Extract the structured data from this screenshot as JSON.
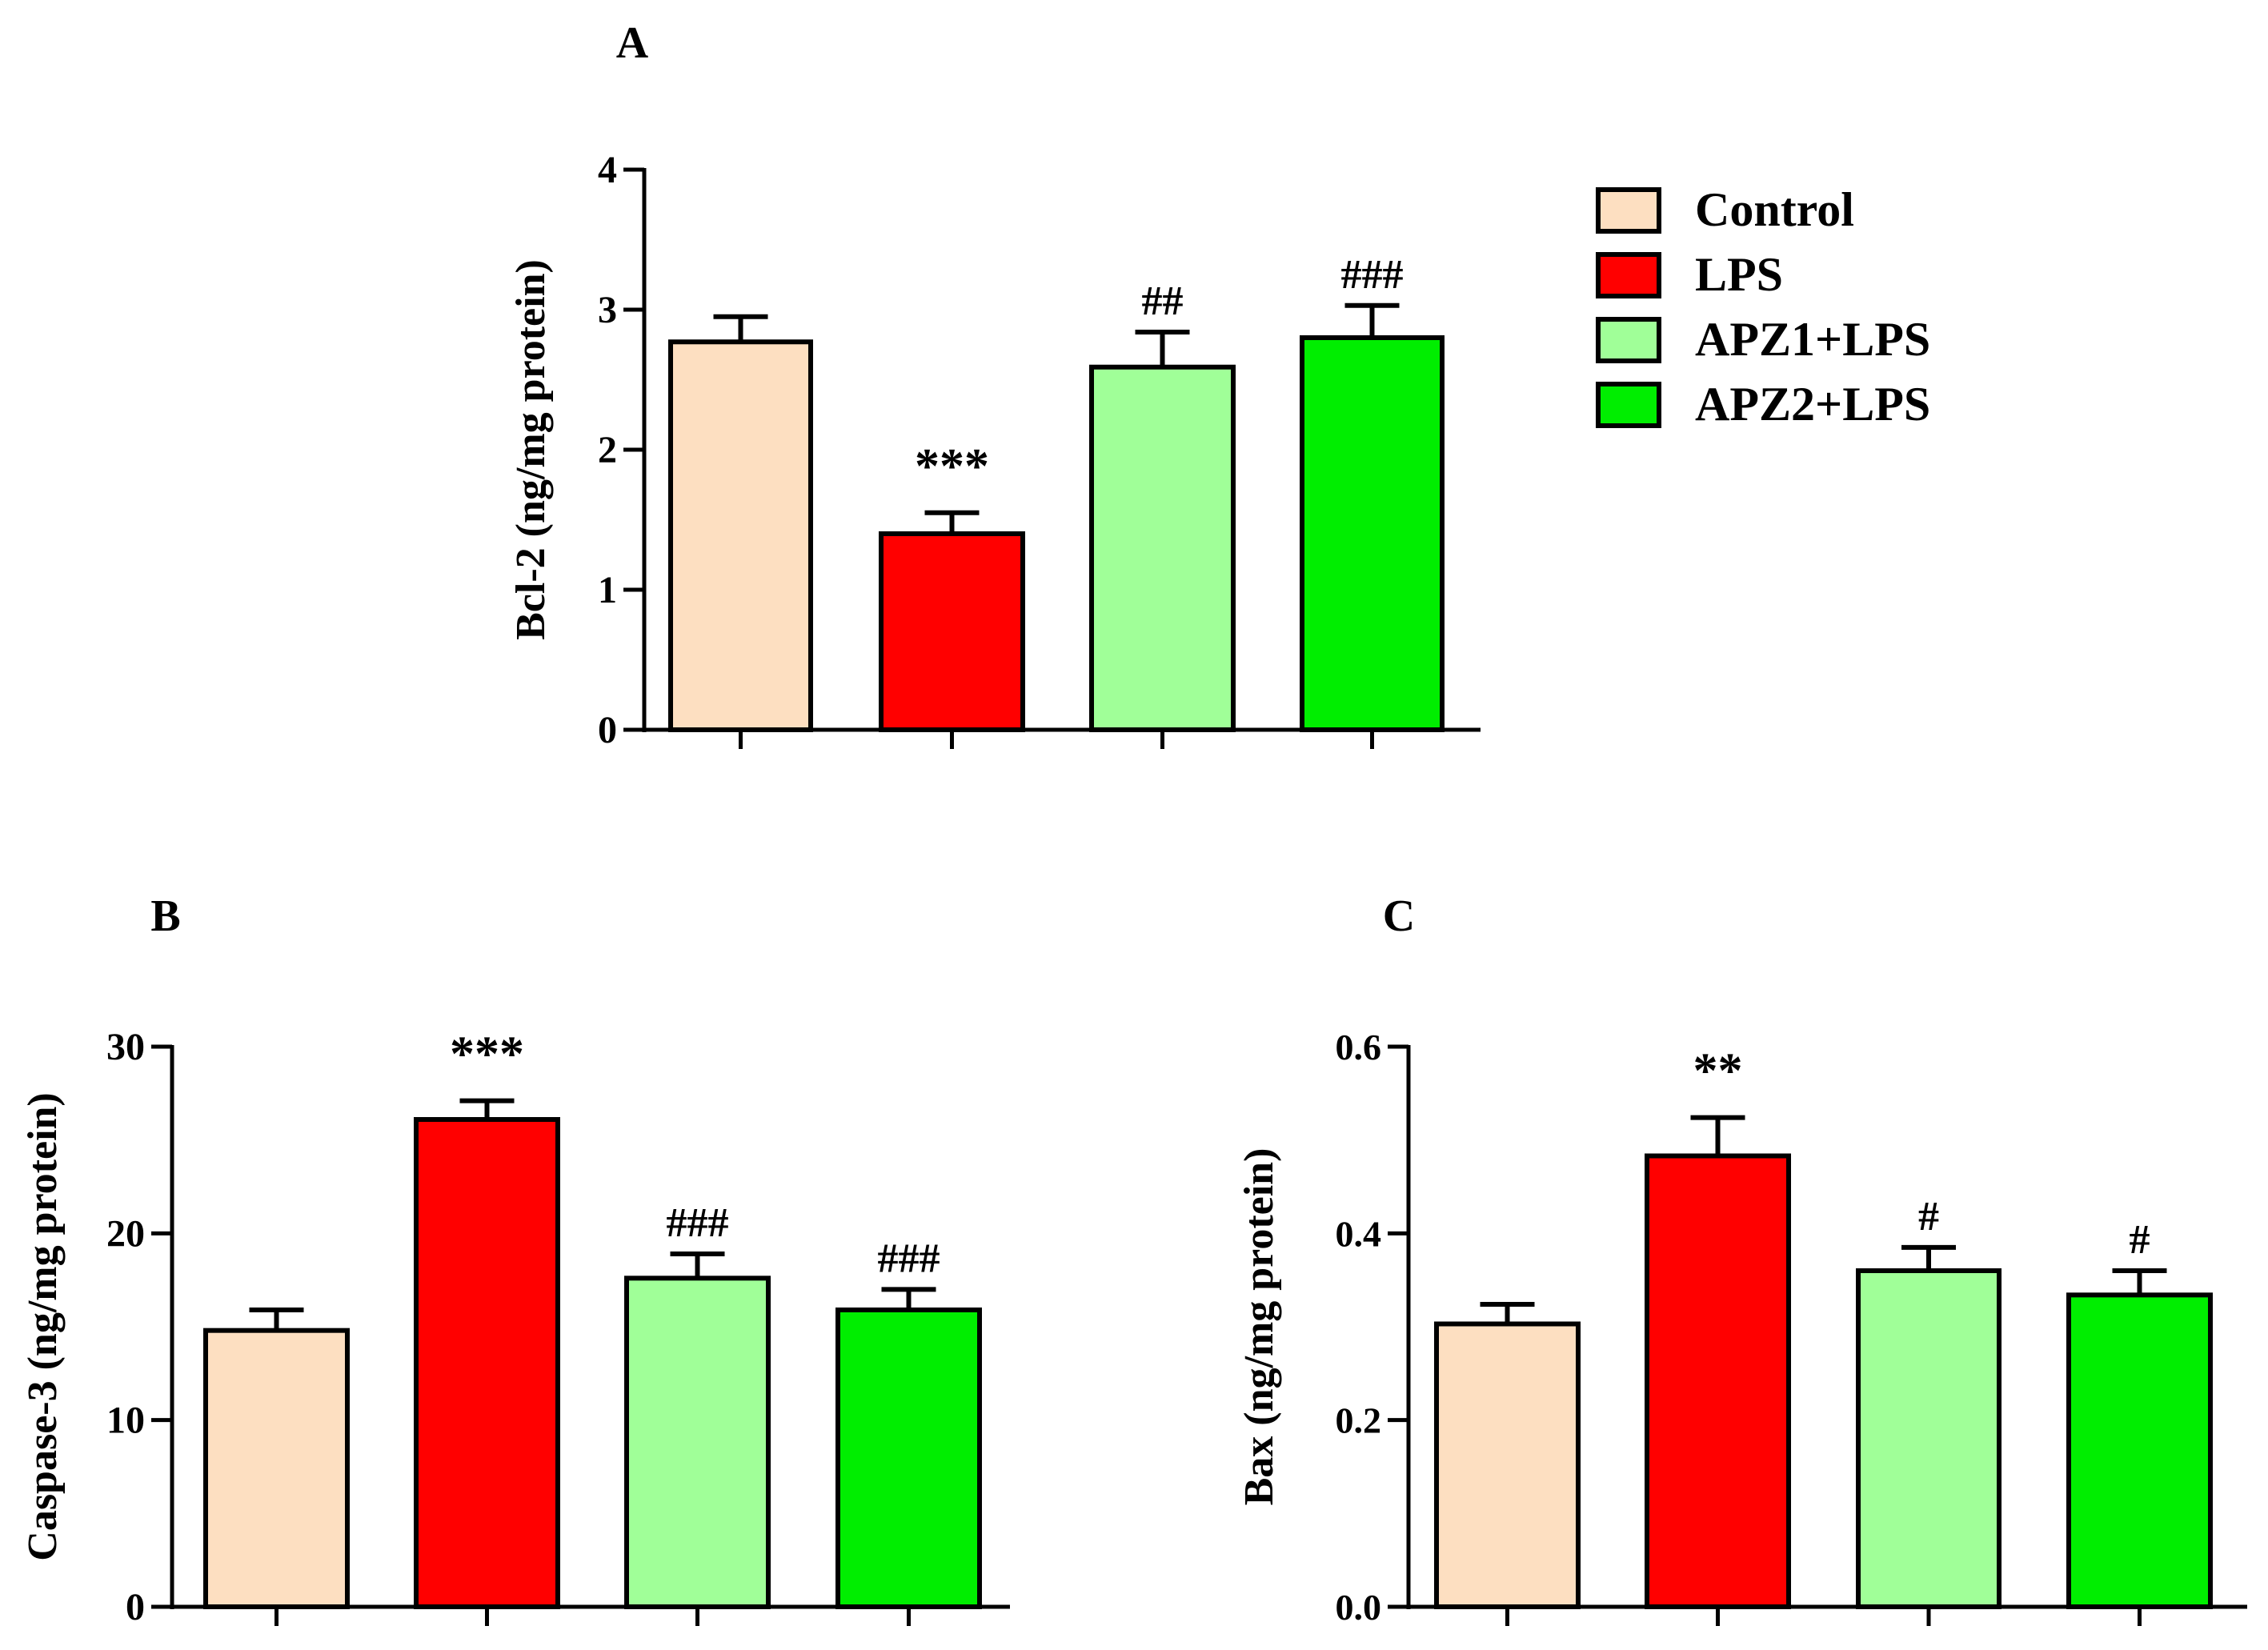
{
  "legend": {
    "position": "top-right",
    "entries": [
      {
        "label": "Control",
        "color": "#FDDFC1"
      },
      {
        "label": "LPS",
        "color": "#FF0000"
      },
      {
        "label": "APZ1+LPS",
        "color": "#A0FF98"
      },
      {
        "label": "APZ2+LPS",
        "color": "#00EE00"
      }
    ]
  },
  "chart_data": [
    {
      "type": "bar",
      "panel": "A",
      "title": "A",
      "ylabel": "Bcl-2 (ng/mg protein)",
      "xlabel": "",
      "ylim": [
        0,
        4
      ],
      "yticks": [
        0,
        1,
        2,
        3,
        4
      ],
      "ytick_labels": [
        "0",
        "1",
        "2",
        "3",
        "4"
      ],
      "categories": [
        "Control",
        "LPS",
        "APZ1+LPS",
        "APZ2+LPS"
      ],
      "values": [
        2.77,
        1.4,
        2.59,
        2.8
      ],
      "errors": [
        0.18,
        0.15,
        0.25,
        0.23
      ],
      "annotations": [
        "",
        "***",
        "##",
        "###"
      ],
      "grid": false
    },
    {
      "type": "bar",
      "panel": "B",
      "title": "B",
      "ylabel": "Caspase-3 (ng/mg protein)",
      "xlabel": "",
      "ylim": [
        0,
        30
      ],
      "yticks": [
        0,
        10,
        20,
        30
      ],
      "ytick_labels": [
        "0",
        "10",
        "20",
        "30"
      ],
      "categories": [
        "Control",
        "LPS",
        "APZ1+LPS",
        "APZ2+LPS"
      ],
      "values": [
        14.8,
        26.1,
        17.6,
        15.9
      ],
      "errors": [
        1.1,
        1.0,
        1.3,
        1.1
      ],
      "annotations": [
        "",
        "***",
        "###",
        "###"
      ],
      "grid": false
    },
    {
      "type": "bar",
      "panel": "C",
      "title": "C",
      "ylabel": "Bax (ng/mg protein)",
      "xlabel": "",
      "ylim": [
        0,
        0.6
      ],
      "yticks": [
        0,
        0.2,
        0.4,
        0.6
      ],
      "ytick_labels": [
        "0.0",
        "0.2",
        "0.4",
        "0.6"
      ],
      "categories": [
        "Control",
        "LPS",
        "APZ1+LPS",
        "APZ2+LPS"
      ],
      "values": [
        0.303,
        0.483,
        0.36,
        0.334
      ],
      "errors": [
        0.021,
        0.041,
        0.025,
        0.026
      ],
      "annotations": [
        "",
        "**",
        "#",
        "#"
      ],
      "grid": false
    }
  ]
}
